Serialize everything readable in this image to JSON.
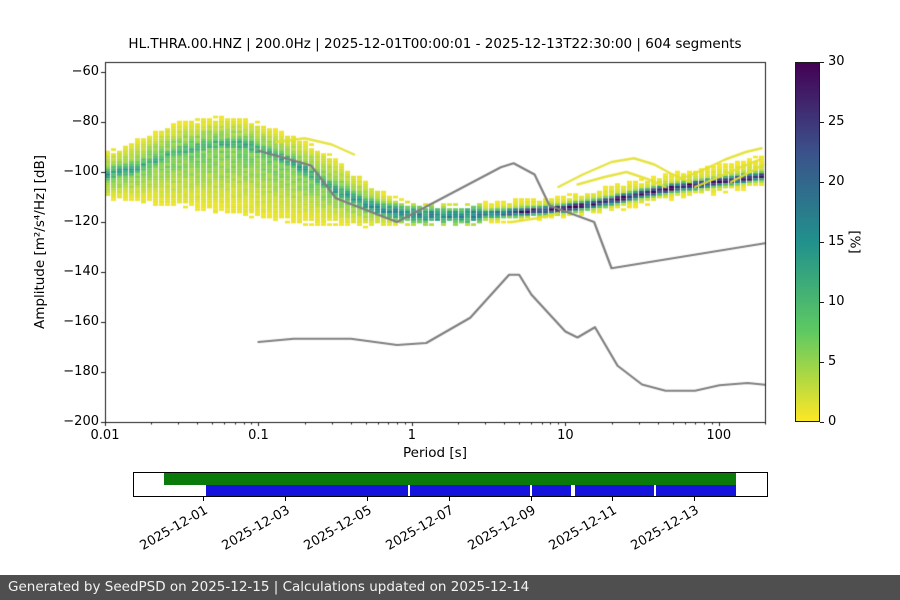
{
  "title": "HL.THRA.00.HNZ | 200.0Hz | 2025-12-01T00:00:01 - 2025-12-13T22:30:00 | 604 segments",
  "axes": {
    "xlabel": "Period [s]",
    "ylabel": "Amplitude [m²/s⁴/Hz] [dB]",
    "x_tick_labels": [
      "0.01",
      "0.1",
      "1",
      "10",
      "100"
    ],
    "x_tick_values": [
      0.01,
      0.1,
      1,
      10,
      100
    ],
    "y_tick_labels": [
      "−60",
      "−80",
      "−100",
      "−120",
      "−140",
      "−160",
      "−180",
      "−200"
    ],
    "y_ticks": [
      -60,
      -80,
      -100,
      -120,
      -140,
      -160,
      -180,
      -200
    ],
    "x_range": [
      0.01,
      200
    ],
    "y_range": [
      -200,
      -56
    ]
  },
  "colorbar": {
    "label": "[%]",
    "ticks": [
      0,
      5,
      10,
      15,
      20,
      25,
      30
    ],
    "range": [
      0,
      30
    ]
  },
  "colors": {
    "colormap_stops": [
      "#fde725",
      "#5ec962",
      "#21918c",
      "#3b528b",
      "#440154"
    ],
    "noise_model_line": "#7f7f7f",
    "outlier_line": "#e3e02e",
    "coverage_green": "#0a7a0a",
    "coverage_blue": "#1414dc",
    "footer_bg": "#4f4f4f",
    "frame": "#1a1a1a"
  },
  "chart_data": {
    "type": "heatmap",
    "title": "HL.THRA.00.HNZ | 200.0Hz | 2025-12-01T00:00:01 - 2025-12-13T22:30:00 | 604 segments",
    "xlabel": "Period [s]",
    "ylabel": "Amplitude [m²/s⁴/Hz] [dB]",
    "x_scale": "log",
    "x_range": [
      0.01,
      200
    ],
    "y_range": [
      -200,
      -56
    ],
    "colorbar_label": "[%]",
    "colorbar_range": [
      0,
      30
    ],
    "ppsd_histogram": {
      "periods_s": [
        0.01,
        0.015,
        0.02,
        0.03,
        0.05,
        0.07,
        0.1,
        0.15,
        0.2,
        0.3,
        0.5,
        0.7,
        1,
        1.5,
        2,
        3,
        5,
        7,
        10,
        15,
        20,
        30,
        50,
        100,
        150,
        200
      ],
      "center_db": [
        -101,
        -99,
        -96,
        -92,
        -89,
        -88.5,
        -90.5,
        -95,
        -99,
        -106,
        -113,
        -115.5,
        -117,
        -117.5,
        -117.5,
        -117,
        -116,
        -115.5,
        -114.5,
        -113,
        -111.5,
        -109,
        -106.5,
        -104,
        -102.5,
        -101.5
      ],
      "upper_extent_db": [
        -92,
        -88,
        -84,
        -80,
        -78,
        -78,
        -80,
        -84,
        -87,
        -93,
        -103,
        -109,
        -112,
        -113,
        -113,
        -112,
        -110,
        -110,
        -109,
        -107,
        -105,
        -103,
        -100,
        -97,
        -95,
        -93
      ],
      "lower_extent_db": [
        -111,
        -112,
        -113,
        -114,
        -116,
        -117,
        -119,
        -120,
        -121,
        -121,
        -122,
        -122,
        -121,
        -121,
        -121,
        -121,
        -120,
        -119,
        -118,
        -117,
        -116,
        -114,
        -111,
        -109,
        -107,
        -106
      ],
      "peak_probability_pct": [
        13,
        12,
        11,
        10,
        10,
        11,
        12,
        12,
        12,
        13,
        14,
        15,
        16,
        16,
        15,
        18,
        24,
        27,
        28,
        28,
        28,
        29,
        29,
        29,
        28,
        27
      ]
    },
    "noise_models": {
      "nhnm": {
        "name": "high noise model",
        "points": [
          [
            0.1,
            -91.5
          ],
          [
            0.22,
            -97.4
          ],
          [
            0.32,
            -110.5
          ],
          [
            0.8,
            -120
          ],
          [
            3.8,
            -98.1
          ],
          [
            4.6,
            -96.5
          ],
          [
            6.3,
            -101
          ],
          [
            7.9,
            -113.5
          ],
          [
            15.4,
            -120
          ],
          [
            20,
            -138.5
          ],
          [
            200,
            -128.5
          ]
        ]
      },
      "nlnm": {
        "name": "low noise model",
        "points": [
          [
            0.1,
            -168
          ],
          [
            0.17,
            -166.7
          ],
          [
            0.4,
            -166.7
          ],
          [
            0.8,
            -169.2
          ],
          [
            1.24,
            -168.4
          ],
          [
            2.4,
            -158.3
          ],
          [
            4.3,
            -141.1
          ],
          [
            5,
            -141.1
          ],
          [
            6,
            -149
          ],
          [
            10,
            -163.8
          ],
          [
            12,
            -166.2
          ],
          [
            15.6,
            -162.1
          ],
          [
            21.9,
            -177.5
          ],
          [
            31.6,
            -185
          ],
          [
            45,
            -187.5
          ],
          [
            70,
            -187.5
          ],
          [
            101,
            -185.3
          ],
          [
            154,
            -184.4
          ],
          [
            200,
            -185.1
          ]
        ]
      }
    },
    "outlier_curves": [
      [
        [
          9,
          -106
        ],
        [
          13,
          -101
        ],
        [
          20,
          -96
        ],
        [
          28,
          -94.5
        ],
        [
          38,
          -97
        ],
        [
          50,
          -101
        ],
        [
          65,
          -104
        ]
      ],
      [
        [
          12,
          -105
        ],
        [
          18,
          -102
        ],
        [
          25,
          -100
        ],
        [
          35,
          -103
        ],
        [
          45,
          -106
        ]
      ],
      [
        [
          55,
          -103
        ],
        [
          80,
          -99
        ],
        [
          110,
          -95
        ],
        [
          150,
          -92
        ],
        [
          190,
          -90.5
        ]
      ],
      [
        [
          70,
          -106
        ],
        [
          100,
          -102
        ],
        [
          140,
          -98
        ],
        [
          185,
          -95
        ]
      ],
      [
        [
          120,
          -104
        ],
        [
          160,
          -100
        ],
        [
          195,
          -97
        ]
      ],
      [
        [
          0.13,
          -88
        ],
        [
          0.2,
          -86.5
        ],
        [
          0.3,
          -89
        ],
        [
          0.42,
          -93
        ]
      ],
      [
        [
          4.5,
          -120
        ],
        [
          6.5,
          -118.5
        ],
        [
          9,
          -116.5
        ]
      ]
    ]
  },
  "coverage": {
    "green_segments": [
      [
        0.047,
        0.951
      ]
    ],
    "blue_segments": [
      [
        0.113,
        0.433
      ],
      [
        0.436,
        0.625
      ],
      [
        0.628,
        0.691
      ],
      [
        0.696,
        0.822
      ],
      [
        0.825,
        0.951
      ]
    ],
    "date_ticks": [
      {
        "label": "2025-12-01",
        "pos": 0.11
      },
      {
        "label": "2025-12-03",
        "pos": 0.239
      },
      {
        "label": "2025-12-05",
        "pos": 0.368
      },
      {
        "label": "2025-12-07",
        "pos": 0.497
      },
      {
        "label": "2025-12-09",
        "pos": 0.626
      },
      {
        "label": "2025-12-11",
        "pos": 0.755
      },
      {
        "label": "2025-12-13",
        "pos": 0.883
      }
    ]
  },
  "footer": {
    "text": "Generated by SeedPSD on 2025-12-15 | Calculations updated on 2025-12-14"
  }
}
